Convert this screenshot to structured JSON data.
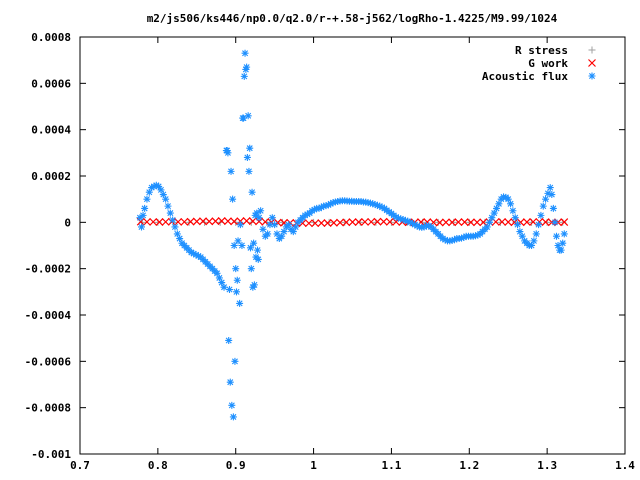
{
  "chart_data": {
    "type": "scatter",
    "title": "m2/js506/ks446/np0.0/q2.0/r-+.58-j562/logRho-1.4225/M9.99/1024",
    "xlabel": "",
    "ylabel": "",
    "xlim": [
      0.7,
      1.4
    ],
    "ylim": [
      -0.001,
      0.0008
    ],
    "x_ticks": [
      0.7,
      0.8,
      0.9,
      1.0,
      1.1,
      1.2,
      1.3,
      1.4
    ],
    "x_tick_labels": [
      "0.7",
      "0.8",
      "0.9",
      "1",
      "1.1",
      "1.2",
      "1.3",
      "1.4"
    ],
    "y_ticks": [
      -0.001,
      -0.0008,
      -0.0006,
      -0.0004,
      -0.0002,
      0,
      0.0002,
      0.0004,
      0.0006,
      0.0008
    ],
    "y_tick_labels": [
      "-0.001",
      "-0.0008",
      "-0.0006",
      "-0.0004",
      "-0.0002",
      "0",
      "0.0002",
      "0.0004",
      "0.0006",
      "0.0008"
    ],
    "grid": false,
    "legend_position": "top-right",
    "series": [
      {
        "name": "R stress",
        "marker": "plus",
        "color": "#a0a0a0",
        "x": [
          0.78,
          0.8,
          0.82,
          0.84,
          0.86,
          0.88,
          0.9,
          0.92,
          0.94,
          0.96,
          0.98,
          1.0,
          1.02,
          1.04,
          1.06,
          1.08,
          1.1,
          1.12,
          1.14,
          1.16,
          1.18,
          1.2,
          1.22,
          1.24,
          1.26,
          1.28,
          1.3,
          1.32
        ],
        "y": [
          0,
          0,
          0,
          0,
          0,
          0,
          0,
          0,
          0,
          0,
          0,
          0,
          0,
          0,
          0,
          0,
          0,
          0,
          0,
          0,
          0,
          0,
          0,
          0,
          0,
          0,
          0,
          0
        ]
      },
      {
        "name": "G work",
        "marker": "cross",
        "color": "#ff0000",
        "x": [
          0.778,
          0.786,
          0.794,
          0.802,
          0.81,
          0.818,
          0.826,
          0.834,
          0.842,
          0.85,
          0.858,
          0.866,
          0.874,
          0.882,
          0.89,
          0.898,
          0.906,
          0.914,
          0.922,
          0.93,
          0.938,
          0.946,
          0.954,
          0.962,
          0.97,
          0.978,
          0.986,
          0.994,
          1.002,
          1.01,
          1.018,
          1.026,
          1.034,
          1.042,
          1.05,
          1.058,
          1.066,
          1.074,
          1.082,
          1.09,
          1.098,
          1.106,
          1.114,
          1.122,
          1.13,
          1.138,
          1.146,
          1.154,
          1.162,
          1.17,
          1.178,
          1.186,
          1.194,
          1.202,
          1.21,
          1.218,
          1.226,
          1.234,
          1.242,
          1.25,
          1.258,
          1.266,
          1.274,
          1.282,
          1.29,
          1.298,
          1.306,
          1.314,
          1.322
        ],
        "y": [
          3e-06,
          2e-06,
          2e-06,
          1e-06,
          2e-06,
          3e-06,
          2e-06,
          2e-06,
          3e-06,
          4e-06,
          5e-06,
          4e-06,
          5e-06,
          6e-06,
          5e-06,
          4e-06,
          5e-06,
          6e-06,
          5e-06,
          4e-06,
          2e-06,
          0.0,
          -1e-06,
          -2e-06,
          -2e-06,
          -3e-06,
          -3e-06,
          -4e-06,
          -4e-06,
          -3e-06,
          -3e-06,
          -2e-06,
          -1e-06,
          0.0,
          1e-06,
          1e-06,
          2e-06,
          2e-06,
          3e-06,
          3e-06,
          2e-06,
          2e-06,
          1e-06,
          0.0,
          0.0,
          1e-06,
          1e-06,
          0.0,
          -1e-06,
          0.0,
          0.0,
          1e-06,
          1e-06,
          0.0,
          0.0,
          0.0,
          1e-06,
          2e-06,
          2e-06,
          1e-06,
          0.0,
          0.0,
          1e-06,
          2e-06,
          2e-06,
          1e-06,
          0.0,
          0.0,
          1e-06
        ]
      },
      {
        "name": "Acoustic flux",
        "marker": "star",
        "color": "#1e90ff",
        "x": [
          0.777,
          0.779,
          0.781,
          0.783,
          0.786,
          0.789,
          0.792,
          0.795,
          0.798,
          0.801,
          0.804,
          0.807,
          0.81,
          0.813,
          0.816,
          0.819,
          0.822,
          0.825,
          0.828,
          0.831,
          0.834,
          0.837,
          0.84,
          0.843,
          0.846,
          0.849,
          0.852,
          0.855,
          0.858,
          0.861,
          0.864,
          0.867,
          0.87,
          0.873,
          0.876,
          0.879,
          0.882,
          0.885,
          0.888,
          0.89,
          0.892,
          0.894,
          0.896,
          0.898,
          0.9,
          0.902,
          0.905,
          0.908,
          0.91,
          0.912,
          0.914,
          0.916,
          0.918,
          0.92,
          0.922,
          0.924,
          0.926,
          0.928,
          0.93,
          0.932,
          0.935,
          0.938,
          0.941,
          0.944,
          0.947,
          0.95,
          0.953,
          0.956,
          0.959,
          0.962,
          0.965,
          0.968,
          0.971,
          0.974,
          0.977,
          0.98,
          0.983,
          0.986,
          0.989,
          0.992,
          0.995,
          0.998,
          1.001,
          1.004,
          1.007,
          1.01,
          1.013,
          1.016,
          1.019,
          1.022,
          1.025,
          1.028,
          1.031,
          1.034,
          1.037,
          1.04,
          1.043,
          1.046,
          1.049,
          1.052,
          1.055,
          1.058,
          1.061,
          1.064,
          1.067,
          1.07,
          1.073,
          1.076,
          1.079,
          1.082,
          1.085,
          1.088,
          1.091,
          1.094,
          1.097,
          1.1,
          1.103,
          1.106,
          1.109,
          1.112,
          1.115,
          1.118,
          1.121,
          1.124,
          1.127,
          1.13,
          1.133,
          1.136,
          1.139,
          1.142,
          1.145,
          1.148,
          1.151,
          1.154,
          1.157,
          1.16,
          1.163,
          1.166,
          1.169,
          1.172,
          1.175,
          1.178,
          1.181,
          1.184,
          1.187,
          1.19,
          1.193,
          1.196,
          1.199,
          1.202,
          1.205,
          1.208,
          1.211,
          1.214,
          1.217,
          1.22,
          1.223,
          1.226,
          1.229,
          1.232,
          1.235,
          1.238,
          1.241,
          1.244,
          1.247,
          1.25,
          1.253,
          1.256,
          1.259,
          1.262,
          1.265,
          1.268,
          1.271,
          1.274,
          1.277,
          1.28,
          1.283,
          1.286,
          1.289,
          1.292,
          1.295,
          1.298,
          1.301,
          1.304,
          1.306,
          1.308,
          1.31,
          1.312,
          1.314,
          1.316,
          1.318,
          1.32,
          1.322,
          0.889,
          0.891,
          0.893,
          0.895,
          0.897,
          0.899,
          0.901,
          0.903,
          0.906,
          0.909,
          0.911,
          0.913,
          0.915,
          0.917,
          0.919,
          0.921,
          0.923,
          0.925,
          0.927,
          0.929
        ],
        "y": [
          2e-05,
          -2e-05,
          3e-05,
          6e-05,
          0.0001,
          0.00013,
          0.00015,
          0.000155,
          0.00016,
          0.000155,
          0.00014,
          0.00012,
          0.0001,
          7e-05,
          4e-05,
          1e-05,
          -2e-05,
          -5e-05,
          -7e-05,
          -9e-05,
          -0.0001,
          -0.00011,
          -0.00012,
          -0.00013,
          -0.000135,
          -0.00014,
          -0.000145,
          -0.00015,
          -0.00016,
          -0.00017,
          -0.00018,
          -0.00019,
          -0.0002,
          -0.00021,
          -0.00022,
          -0.00024,
          -0.00026,
          -0.00028,
          0.00031,
          0.0003,
          -0.00029,
          0.00022,
          0.0001,
          -0.0001,
          -0.0002,
          -0.00025,
          -0.00035,
          -0.0001,
          0.00045,
          0.00073,
          0.00067,
          0.00046,
          0.00032,
          -0.0002,
          -0.00028,
          -0.00027,
          -0.00015,
          -0.00012,
          2e-05,
          5e-05,
          -3e-05,
          -6e-05,
          -5e-05,
          -1e-05,
          2e-05,
          -1e-05,
          -5e-05,
          -7e-05,
          -6e-05,
          -4e-05,
          -2e-05,
          -1e-05,
          -3e-05,
          -4e-05,
          -2e-05,
          0.0,
          1e-05,
          2e-05,
          3e-05,
          3.5e-05,
          4e-05,
          5e-05,
          5.5e-05,
          6e-05,
          6e-05,
          6.5e-05,
          7e-05,
          7.2e-05,
          7.5e-05,
          8e-05,
          8.5e-05,
          8.8e-05,
          9e-05,
          9.2e-05,
          9.3e-05,
          9.3e-05,
          9.2e-05,
          9.1e-05,
          9.1e-05,
          9e-05,
          9e-05,
          9e-05,
          9e-05,
          8.8e-05,
          8.7e-05,
          8.5e-05,
          8.3e-05,
          8e-05,
          7.7e-05,
          7.3e-05,
          7e-05,
          6.5e-05,
          6e-05,
          5.2e-05,
          4.5e-05,
          3.8e-05,
          3e-05,
          2.3e-05,
          1.8e-05,
          1.5e-05,
          1.2e-05,
          8e-06,
          5e-06,
          0.0,
          -5e-06,
          -1e-05,
          -1.5e-05,
          -2e-05,
          -2.2e-05,
          -2e-05,
          -1.5e-05,
          -1.5e-05,
          -2e-05,
          -3e-05,
          -4e-05,
          -5e-05,
          -6e-05,
          -7e-05,
          -7.5e-05,
          -8e-05,
          -8e-05,
          -7.8e-05,
          -7.5e-05,
          -7e-05,
          -7e-05,
          -6.8e-05,
          -6.5e-05,
          -6e-05,
          -6e-05,
          -6e-05,
          -6e-05,
          -5.8e-05,
          -5.5e-05,
          -5e-05,
          -4e-05,
          -3e-05,
          -2e-05,
          0.0,
          2e-05,
          4e-05,
          6e-05,
          8e-05,
          0.0001,
          0.00011,
          0.000108,
          0.0001,
          8e-05,
          5e-05,
          2e-05,
          -1e-05,
          -4e-05,
          -6e-05,
          -8e-05,
          -9e-05,
          -0.0001,
          -0.0001,
          -8e-05,
          -5e-05,
          -1e-05,
          3e-05,
          7e-05,
          0.0001,
          0.000125,
          0.00015,
          0.00012,
          6e-05,
          0.0,
          -6e-05,
          -0.0001,
          -0.00012,
          -0.00012,
          -9e-05,
          -5e-05,
          0.00031,
          -0.00051,
          -0.00069,
          -0.00079,
          -0.00084,
          -0.0006,
          -0.0003,
          -8e-05,
          -1e-05,
          0.00045,
          0.00063,
          0.00066,
          0.00028,
          0.00022,
          -0.00011,
          0.00013,
          -9e-05,
          3e-05,
          4e-05,
          -0.00016
        ]
      }
    ]
  }
}
